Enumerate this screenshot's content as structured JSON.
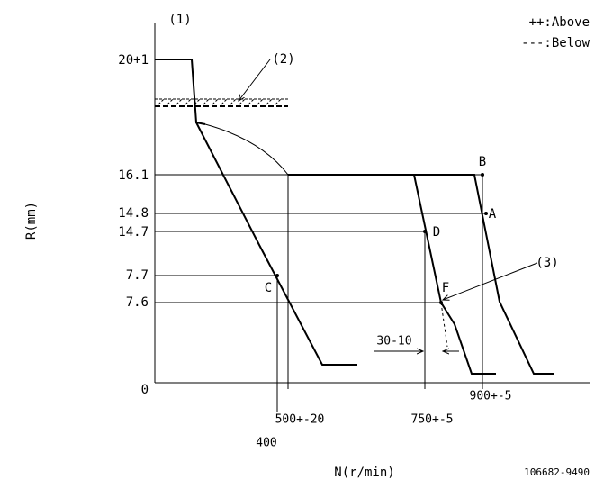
{
  "labels": {
    "ref1": "(1)",
    "ref2": "(2)",
    "ref3": "(3)",
    "above": "++:Above",
    "below": "---:Below",
    "y_axis": "R(mm)",
    "x_axis": "N(r/min)",
    "drawing_no": "106682-9490",
    "zero": "0"
  },
  "y_labels": [
    "20+1",
    "16.1",
    "14.8",
    "14.7",
    "7.7",
    "7.6"
  ],
  "points": {
    "A": "A",
    "B": "B",
    "C": "C",
    "D": "D",
    "F": "F"
  },
  "x_labels": {
    "n400": "400",
    "n500": "500+-20",
    "n750": "750+-5",
    "n900": "900+-5",
    "delta": "30-10"
  }
}
